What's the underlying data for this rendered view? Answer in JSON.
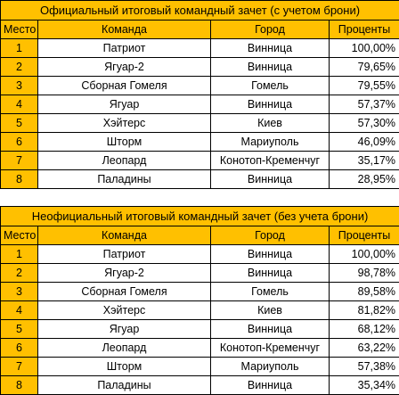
{
  "tables": [
    {
      "title": "Официальный итоговый командный зачет (с учетом брони)",
      "headers": {
        "place": "Место",
        "team": "Команда",
        "city": "Город",
        "percent": "Проценты"
      },
      "rows": [
        {
          "place": "1",
          "team": "Патриот",
          "city": "Винница",
          "percent": "100,00%"
        },
        {
          "place": "2",
          "team": "Ягуар-2",
          "city": "Винница",
          "percent": "79,65%"
        },
        {
          "place": "3",
          "team": "Сборная Гомеля",
          "city": "Гомель",
          "percent": "79,55%"
        },
        {
          "place": "4",
          "team": "Ягуар",
          "city": "Винница",
          "percent": "57,37%"
        },
        {
          "place": "5",
          "team": "Хэйтерс",
          "city": "Киев",
          "percent": "57,30%"
        },
        {
          "place": "6",
          "team": "Шторм",
          "city": "Мариуполь",
          "percent": "46,09%"
        },
        {
          "place": "7",
          "team": "Леопард",
          "city": "Конотоп-Кременчуг",
          "percent": "35,17%"
        },
        {
          "place": "8",
          "team": "Паладины",
          "city": "Винница",
          "percent": "28,95%"
        }
      ]
    },
    {
      "title": "Неофициальный итоговый командный зачет (без учета брони)",
      "headers": {
        "place": "Место",
        "team": "Команда",
        "city": "Город",
        "percent": "Проценты"
      },
      "rows": [
        {
          "place": "1",
          "team": "Патриот",
          "city": "Винница",
          "percent": "100,00%"
        },
        {
          "place": "2",
          "team": "Ягуар-2",
          "city": "Винница",
          "percent": "98,78%"
        },
        {
          "place": "3",
          "team": "Сборная Гомеля",
          "city": "Гомель",
          "percent": "89,58%"
        },
        {
          "place": "4",
          "team": "Хэйтерс",
          "city": "Киев",
          "percent": "81,82%"
        },
        {
          "place": "5",
          "team": "Ягуар",
          "city": "Винница",
          "percent": "68,12%"
        },
        {
          "place": "6",
          "team": "Леопард",
          "city": "Конотоп-Кременчуг",
          "percent": "63,22%"
        },
        {
          "place": "7",
          "team": "Шторм",
          "city": "Мариуполь",
          "percent": "57,38%"
        },
        {
          "place": "8",
          "team": "Паладины",
          "city": "Винница",
          "percent": "35,34%"
        }
      ]
    }
  ],
  "colors": {
    "header_fill": "#ffc000",
    "cell_fill": "#ffffff",
    "border": "#000000"
  }
}
